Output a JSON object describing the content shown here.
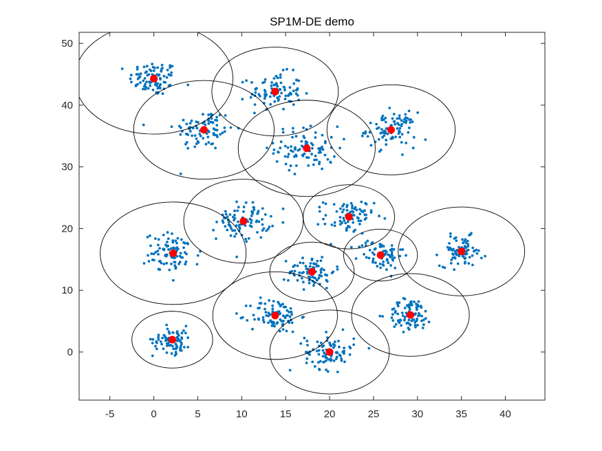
{
  "chart_data": {
    "type": "scatter",
    "title": "SP1M-DE demo",
    "xlabel": "",
    "ylabel": "",
    "xlim": [
      -8.5,
      44.5
    ],
    "ylim": [
      -7.8,
      51.8
    ],
    "xticks": [
      -5,
      0,
      5,
      10,
      15,
      20,
      25,
      30,
      35,
      40
    ],
    "yticks": [
      0,
      10,
      20,
      30,
      40,
      50
    ],
    "grid": false,
    "colors": {
      "points": "#0072BD",
      "centers": "#FF0000",
      "circles": "#000000",
      "axes": "#262626"
    },
    "clusters": [
      {
        "center": [
          0,
          44.3
        ],
        "radius": 9,
        "spread": 1.4,
        "count": 90
      },
      {
        "center": [
          5.7,
          36
        ],
        "radius": 8,
        "spread": 1.7,
        "count": 90
      },
      {
        "center": [
          13.8,
          42.2
        ],
        "radius": 7.2,
        "spread": 1.5,
        "count": 90
      },
      {
        "center": [
          17.4,
          33
        ],
        "radius": 7.8,
        "spread": 1.8,
        "count": 90
      },
      {
        "center": [
          27,
          36
        ],
        "radius": 7.3,
        "spread": 1.4,
        "count": 90
      },
      {
        "center": [
          2.2,
          16
        ],
        "radius": 8.3,
        "spread": 1.6,
        "count": 90
      },
      {
        "center": [
          10.2,
          21.2
        ],
        "radius": 6.8,
        "spread": 1.5,
        "count": 90
      },
      {
        "center": [
          22.2,
          21.9
        ],
        "radius": 5.2,
        "spread": 1.4,
        "count": 80
      },
      {
        "center": [
          35,
          16.3
        ],
        "radius": 7.2,
        "spread": 1.2,
        "count": 80
      },
      {
        "center": [
          25.8,
          15.7
        ],
        "radius": 4.2,
        "spread": 1.3,
        "count": 70
      },
      {
        "center": [
          18,
          13
        ],
        "radius": 4.8,
        "spread": 1.3,
        "count": 80
      },
      {
        "center": [
          13.8,
          5.9
        ],
        "radius": 7.1,
        "spread": 1.4,
        "count": 90
      },
      {
        "center": [
          29.2,
          6
        ],
        "radius": 6.7,
        "spread": 1.3,
        "count": 90
      },
      {
        "center": [
          2.1,
          2
        ],
        "radius": 4.6,
        "spread": 1.1,
        "count": 80
      },
      {
        "center": [
          20,
          0
        ],
        "radius": 6.8,
        "spread": 1.4,
        "count": 90
      }
    ]
  }
}
